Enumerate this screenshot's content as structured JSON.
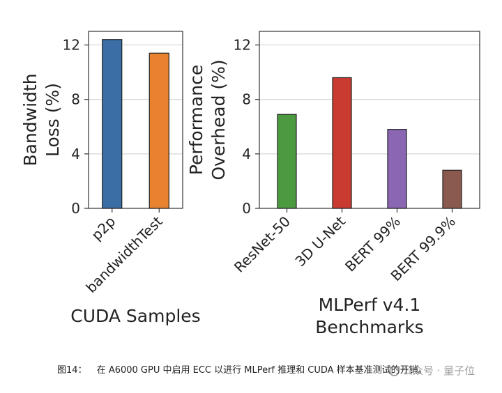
{
  "chart_data": [
    {
      "type": "bar",
      "categories": [
        "p2p",
        "bandwidthTest"
      ],
      "values": [
        12.4,
        11.4
      ],
      "colors": [
        "#3a6ea5",
        "#e8822f"
      ],
      "ylabel_lines": [
        "Bandwidth",
        "Loss (%)"
      ],
      "xlabel": "CUDA Samples",
      "ylim": [
        0,
        13
      ],
      "yticks": [
        0,
        4,
        8,
        12
      ],
      "grid": true
    },
    {
      "type": "bar",
      "categories": [
        "ResNet-50",
        "3D U-Net",
        "BERT 99%",
        "BERT 99.9%"
      ],
      "values": [
        6.9,
        9.6,
        5.8,
        2.8
      ],
      "colors": [
        "#4c9a3f",
        "#c93a31",
        "#8a66b3",
        "#8b5a4f"
      ],
      "ylabel_lines": [
        "Performance",
        "Overhead (%)"
      ],
      "xlabel_lines": [
        "MLPerf v4.1",
        "Benchmarks"
      ],
      "ylim": [
        0,
        13
      ],
      "yticks": [
        0,
        4,
        8,
        12
      ],
      "grid": true
    }
  ],
  "caption": {
    "figure_number": "图14：",
    "text": "在 A6000 GPU 中启用 ECC 以进行 MLPerf 推理和 CUDA 样本基准测试的开销。"
  },
  "watermark": "公众号 · 量子位"
}
